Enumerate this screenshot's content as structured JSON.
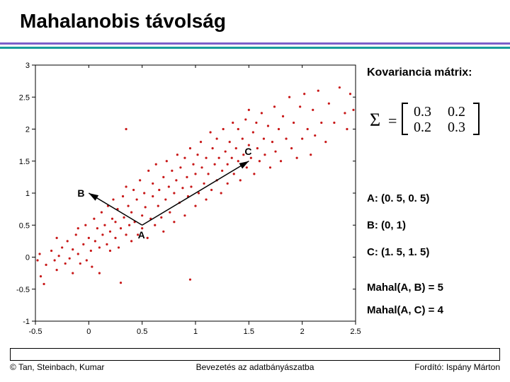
{
  "title": "Mahalanobis távolság",
  "rules": {
    "purple": "#7c5fc9",
    "teal": "#1a9c9c"
  },
  "chart": {
    "type": "scatter",
    "xlim": [
      -0.5,
      2.5
    ],
    "ylim": [
      -1.0,
      3.0
    ],
    "xtick_step": 0.5,
    "ytick_step": 0.5,
    "marker_color": "#c81818",
    "marker_radius": 1.6,
    "axis_color": "#000000",
    "tick_fontsize": 11,
    "background_color": "#ffffff",
    "points": [
      [
        -0.48,
        -0.05
      ],
      [
        -0.46,
        0.05
      ],
      [
        -0.42,
        -0.42
      ],
      [
        -0.4,
        -0.12
      ],
      [
        -0.45,
        -0.3
      ],
      [
        -0.35,
        0.1
      ],
      [
        -0.32,
        -0.05
      ],
      [
        -0.3,
        0.3
      ],
      [
        -0.3,
        -0.2
      ],
      [
        -0.28,
        0.02
      ],
      [
        -0.25,
        0.15
      ],
      [
        -0.22,
        -0.1
      ],
      [
        -0.2,
        0.25
      ],
      [
        -0.18,
        -0.02
      ],
      [
        -0.15,
        0.12
      ],
      [
        -0.15,
        -0.25
      ],
      [
        -0.12,
        0.35
      ],
      [
        -0.1,
        0.05
      ],
      [
        -0.1,
        0.45
      ],
      [
        -0.08,
        -0.1
      ],
      [
        -0.05,
        0.2
      ],
      [
        -0.03,
        0.5
      ],
      [
        -0.02,
        -0.05
      ],
      [
        0.0,
        0.3
      ],
      [
        0.02,
        0.1
      ],
      [
        0.03,
        -0.15
      ],
      [
        0.05,
        0.6
      ],
      [
        0.06,
        0.25
      ],
      [
        0.08,
        0.45
      ],
      [
        0.1,
        0.15
      ],
      [
        0.1,
        -0.25
      ],
      [
        0.12,
        0.7
      ],
      [
        0.13,
        0.35
      ],
      [
        0.15,
        0.5
      ],
      [
        0.17,
        0.2
      ],
      [
        0.18,
        0.8
      ],
      [
        0.2,
        0.4
      ],
      [
        0.2,
        0.1
      ],
      [
        0.22,
        0.6
      ],
      [
        0.23,
        0.9
      ],
      [
        0.25,
        0.3
      ],
      [
        0.25,
        0.55
      ],
      [
        0.27,
        0.75
      ],
      [
        0.28,
        0.15
      ],
      [
        0.3,
        -0.4
      ],
      [
        0.3,
        0.45
      ],
      [
        0.32,
        0.95
      ],
      [
        0.33,
        0.62
      ],
      [
        0.35,
        0.35
      ],
      [
        0.35,
        1.1
      ],
      [
        0.37,
        0.8
      ],
      [
        0.38,
        0.5
      ],
      [
        0.4,
        0.25
      ],
      [
        0.4,
        0.7
      ],
      [
        0.42,
        1.05
      ],
      [
        0.43,
        0.55
      ],
      [
        0.45,
        0.9
      ],
      [
        0.46,
        0.35
      ],
      [
        0.48,
        1.2
      ],
      [
        0.5,
        0.65
      ],
      [
        0.5,
        0.45
      ],
      [
        0.52,
        1.0
      ],
      [
        0.53,
        0.78
      ],
      [
        0.55,
        0.3
      ],
      [
        0.56,
        1.35
      ],
      [
        0.58,
        0.6
      ],
      [
        0.6,
        0.95
      ],
      [
        0.6,
        1.15
      ],
      [
        0.62,
        0.5
      ],
      [
        0.63,
        1.45
      ],
      [
        0.65,
        0.8
      ],
      [
        0.66,
        1.05
      ],
      [
        0.68,
        0.62
      ],
      [
        0.7,
        1.25
      ],
      [
        0.7,
        0.4
      ],
      [
        0.72,
        0.9
      ],
      [
        0.73,
        1.5
      ],
      [
        0.75,
        1.1
      ],
      [
        0.76,
        0.7
      ],
      [
        0.78,
        1.35
      ],
      [
        0.8,
        0.55
      ],
      [
        0.8,
        1.0
      ],
      [
        0.82,
        1.2
      ],
      [
        0.83,
        1.6
      ],
      [
        0.85,
        0.85
      ],
      [
        0.86,
        1.4
      ],
      [
        0.88,
        1.08
      ],
      [
        0.9,
        0.65
      ],
      [
        0.9,
        1.55
      ],
      [
        0.92,
        1.25
      ],
      [
        0.93,
        0.95
      ],
      [
        0.95,
        1.7
      ],
      [
        0.96,
        1.1
      ],
      [
        0.98,
        1.45
      ],
      [
        1.0,
        0.8
      ],
      [
        1.0,
        1.3
      ],
      [
        1.02,
        1.6
      ],
      [
        1.03,
        1.0
      ],
      [
        1.05,
        1.8
      ],
      [
        1.06,
        1.4
      ],
      [
        1.08,
        1.15
      ],
      [
        1.1,
        0.9
      ],
      [
        1.1,
        1.55
      ],
      [
        1.12,
        1.3
      ],
      [
        1.14,
        1.95
      ],
      [
        1.15,
        1.05
      ],
      [
        1.16,
        1.7
      ],
      [
        1.18,
        1.45
      ],
      [
        1.2,
        1.2
      ],
      [
        1.2,
        1.85
      ],
      [
        1.22,
        1.55
      ],
      [
        1.24,
        1.0
      ],
      [
        1.25,
        1.35
      ],
      [
        1.26,
        2.0
      ],
      [
        1.28,
        1.65
      ],
      [
        1.3,
        1.45
      ],
      [
        1.3,
        1.15
      ],
      [
        1.32,
        1.8
      ],
      [
        1.34,
        1.55
      ],
      [
        1.35,
        2.1
      ],
      [
        1.36,
        1.3
      ],
      [
        1.38,
        1.7
      ],
      [
        1.4,
        1.5
      ],
      [
        1.4,
        2.0
      ],
      [
        1.42,
        1.2
      ],
      [
        1.44,
        1.85
      ],
      [
        1.45,
        1.6
      ],
      [
        1.47,
        2.15
      ],
      [
        1.48,
        1.4
      ],
      [
        1.5,
        1.75
      ],
      [
        1.5,
        2.3
      ],
      [
        1.52,
        1.55
      ],
      [
        1.54,
        1.95
      ],
      [
        1.55,
        1.3
      ],
      [
        1.57,
        2.1
      ],
      [
        1.58,
        1.7
      ],
      [
        1.6,
        1.5
      ],
      [
        1.62,
        2.25
      ],
      [
        1.64,
        1.85
      ],
      [
        1.65,
        1.6
      ],
      [
        1.68,
        2.05
      ],
      [
        1.7,
        1.4
      ],
      [
        1.72,
        1.8
      ],
      [
        1.74,
        2.35
      ],
      [
        1.75,
        1.65
      ],
      [
        1.78,
        2.0
      ],
      [
        1.8,
        1.5
      ],
      [
        1.82,
        2.2
      ],
      [
        1.85,
        1.85
      ],
      [
        1.88,
        2.5
      ],
      [
        1.9,
        1.7
      ],
      [
        1.92,
        2.1
      ],
      [
        1.95,
        1.55
      ],
      [
        1.98,
        2.35
      ],
      [
        2.0,
        1.85
      ],
      [
        2.02,
        2.55
      ],
      [
        2.05,
        2.0
      ],
      [
        2.08,
        1.6
      ],
      [
        2.1,
        2.3
      ],
      [
        2.12,
        1.9
      ],
      [
        2.15,
        2.6
      ],
      [
        2.18,
        2.1
      ],
      [
        2.22,
        1.8
      ],
      [
        2.25,
        2.4
      ],
      [
        2.3,
        2.1
      ],
      [
        2.35,
        2.65
      ],
      [
        2.4,
        2.25
      ],
      [
        2.42,
        2.0
      ],
      [
        2.45,
        2.55
      ],
      [
        2.48,
        2.3
      ],
      [
        0.35,
        2.0
      ],
      [
        0.95,
        -0.35
      ]
    ],
    "named_points": {
      "A": [
        0.5,
        0.5
      ],
      "B": [
        0.0,
        1.0
      ],
      "C": [
        1.5,
        1.5
      ]
    },
    "arrows": [
      {
        "from": [
          0.5,
          0.5
        ],
        "to": [
          0.0,
          1.0
        ],
        "label": ""
      },
      {
        "from": [
          0.5,
          0.5
        ],
        "to": [
          1.5,
          1.5
        ],
        "label": ""
      }
    ]
  },
  "covariance_label": "Kovariancia mátrix:",
  "covariance": {
    "sigma": "Σ",
    "a11": "0.3",
    "a12": "0.2",
    "a21": "0.2",
    "a22": "0.3"
  },
  "coords": {
    "A": "A: (0. 5, 0. 5)",
    "B": "B: (0, 1)",
    "C": "C: (1. 5, 1. 5)"
  },
  "mahal": {
    "AB": "Mahal(A, B) = 5",
    "AC": "Mahal(A, C) = 4"
  },
  "footer": {
    "left": "© Tan, Steinbach, Kumar",
    "center": "Bevezetés az adatbányászatba",
    "right": "Fordító: Ispány Márton"
  }
}
